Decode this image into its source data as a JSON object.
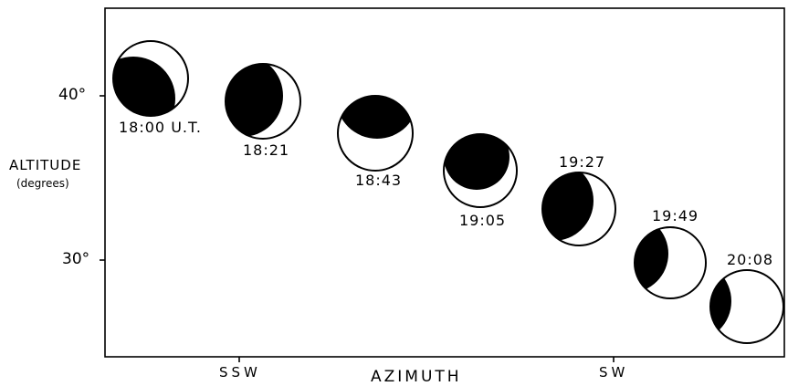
{
  "y_axis": {
    "label": "ALTITUDE",
    "sublabel": "(degrees)",
    "ticks": [
      "40°",
      "30°"
    ]
  },
  "x_axis": {
    "label": "AZIMUTH",
    "ticks": [
      "SSW",
      "SW"
    ]
  },
  "phases": [
    {
      "time": "18:00 U.T."
    },
    {
      "time": "18:21"
    },
    {
      "time": "18:43"
    },
    {
      "time": "19:05"
    },
    {
      "time": "19:27"
    },
    {
      "time": "19:49"
    },
    {
      "time": "20:08"
    }
  ]
}
